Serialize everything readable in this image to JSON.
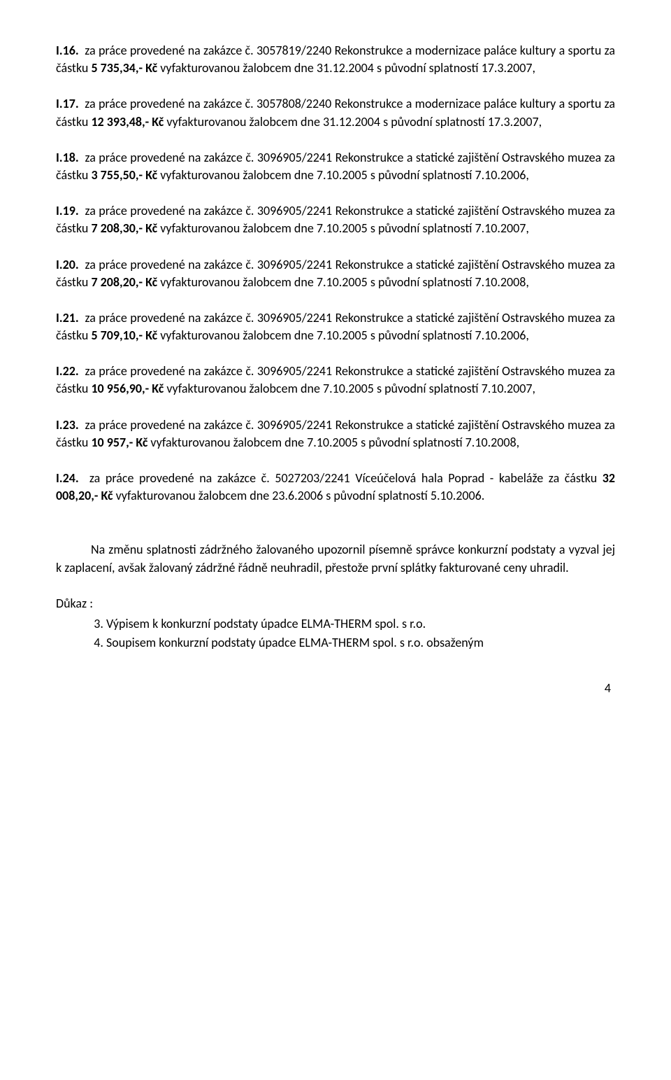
{
  "items": [
    {
      "num": "I.16.",
      "body": "za práce provedené na zakázce č. 3057819/2240  Rekonstrukce a modernizace paláce kultury a sportu za částku ",
      "amount": "5 735,34,- Kč",
      "tail": "  vyfakturovanou žalobcem dne 31.12.2004 s původní splatností  17.3.2007,"
    },
    {
      "num": "I.17.",
      "body": "za práce provedené na zakázce č. 3057808/2240  Rekonstrukce a modernizace paláce kultury a sportu za částku ",
      "amount": "12 393,48,- Kč",
      "tail": "  vyfakturovanou žalobcem dne 31.12.2004 s původní splatností  17.3.2007,"
    },
    {
      "num": "I.18.",
      "body": "za práce provedené na zakázce č. 3096905/2241   Rekonstrukce a statické zajištění Ostravského muzea za částku ",
      "amount": "3 755,50,- Kč",
      "tail": "  vyfakturovanou žalobcem dne 7.10.2005 s původní splatností  7.10.2006,"
    },
    {
      "num": "I.19.",
      "body": "za práce provedené na zakázce č. 3096905/2241   Rekonstrukce a statické zajištění Ostravského muzea za částku ",
      "amount": "7 208,30,- Kč",
      "tail": "  vyfakturovanou žalobcem dne 7.10.2005 s původní splatností  7.10.2007,"
    },
    {
      "num": "I.20.",
      "body": "za práce provedené na zakázce č. 3096905/2241   Rekonstrukce a statické zajištění Ostravského muzea za částku ",
      "amount": "7 208,20,- Kč",
      "tail": "  vyfakturovanou žalobcem dne 7.10.2005 s původní splatností  7.10.2008,"
    },
    {
      "num": "I.21.",
      "body": "za práce provedené na zakázce č. 3096905/2241   Rekonstrukce a statické zajištění Ostravského muzea za částku ",
      "amount": "5 709,10,- Kč",
      "tail": "  vyfakturovanou žalobcem dne 7.10.2005 s původní splatností  7.10.2006,"
    },
    {
      "num": "I.22.",
      "body": "za práce provedené na zakázce č. 3096905/2241   Rekonstrukce a statické zajištění Ostravského muzea za částku ",
      "amount": "10 956,90,- Kč",
      "tail": "  vyfakturovanou žalobcem dne 7.10.2005 s původní splatností  7.10.2007,"
    },
    {
      "num": "I.23.",
      "body": "za práce provedené na zakázce č. 3096905/2241   Rekonstrukce a statické zajištění Ostravského muzea za částku ",
      "amount": "10 957,- Kč",
      "tail": "  vyfakturovanou žalobcem dne 7.10.2005 s původní splatností  7.10.2008,"
    },
    {
      "num": "I.24.",
      "body": "za práce provedené na zakázce č. 5027203/2241   Víceúčelová hala Poprad - kabeláže za částku ",
      "amount": "32 008,20,- Kč",
      "tail": "  vyfakturovanou žalobcem dne  23.6.2006 s původní splatností  5.10.2006."
    }
  ],
  "paragraph": "Na změnu splatnosti zádržného žalovaného upozornil písemně správce konkurzní podstaty a vyzval jej k zaplacení,  avšak žalovaný zádržné řádně neuhradil, přestože první splátky fakturované  ceny uhradil.",
  "dukaz_label": "Důkaz :",
  "dukaz_items": [
    "Výpisem k konkurzní podstaty úpadce ELMA-THERM spol. s r.o.",
    "Soupisem konkurzní podstaty úpadce ELMA-THERM spol. s r.o. obsaženým"
  ],
  "page_number": "4"
}
